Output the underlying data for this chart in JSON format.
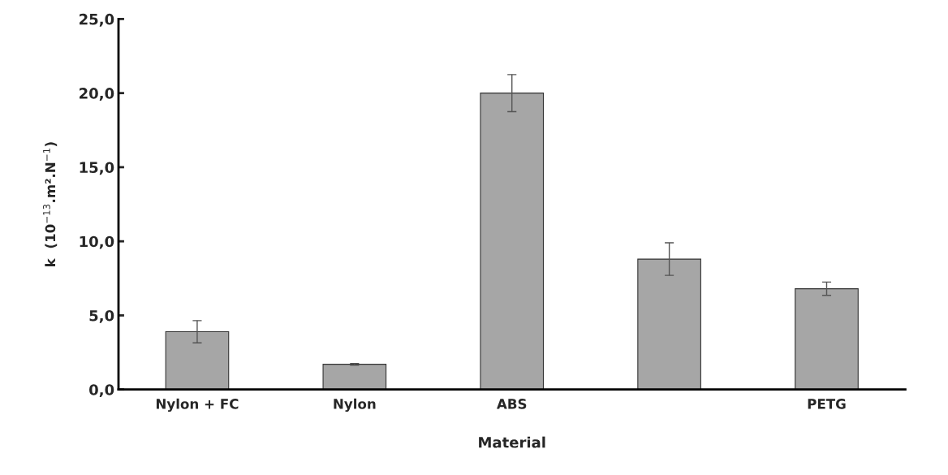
{
  "chart_data": {
    "type": "bar",
    "xlabel": "Material",
    "ylabel": "k  (10$^{−13}$.m².N$^{−1}$)",
    "categories": [
      "Nylon + FC",
      "Nylon",
      "ABS",
      null,
      "PETG"
    ],
    "values": [
      3.9,
      1.7,
      20.0,
      8.8,
      6.8
    ],
    "errors": [
      0.75,
      0.06,
      1.25,
      1.1,
      0.45
    ],
    "color": "#a6a6a6",
    "ylim": [
      0,
      25
    ],
    "yticks": [
      {
        "value": 0,
        "label": "0,0"
      },
      {
        "value": 5,
        "label": "5,0"
      },
      {
        "value": 10,
        "label": "10,0"
      },
      {
        "value": 15,
        "label": "15,0"
      },
      {
        "value": 20,
        "label": "20,0"
      },
      {
        "value": 25,
        "label": "25,0"
      }
    ],
    "grid": false,
    "legend": false
  }
}
